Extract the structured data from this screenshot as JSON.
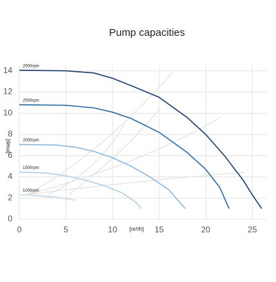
{
  "chart_data": {
    "type": "line",
    "title": "Pump capacities",
    "x_label": "[m³/h]",
    "y_label": "[mwp]",
    "xlim": [
      0,
      26.5
    ],
    "ylim": [
      0,
      14.5
    ],
    "xticks": [
      0,
      5,
      10,
      15,
      20,
      25
    ],
    "yticks": [
      0,
      2,
      4,
      6,
      8,
      10,
      12,
      14
    ],
    "grid": true,
    "series": [
      {
        "name": "2900rpm",
        "color": "#1f3f6e",
        "x": [
          0,
          5,
          8,
          10,
          12,
          15,
          18,
          20,
          22,
          24,
          25,
          26
        ],
        "values": [
          14.05,
          14.0,
          13.8,
          13.3,
          12.6,
          11.5,
          9.6,
          8.0,
          6.0,
          3.7,
          2.3,
          1.0
        ]
      },
      {
        "name": "2500rpm",
        "color": "#2e6ea6",
        "x": [
          0,
          5,
          8,
          10,
          12,
          15,
          18,
          20,
          21.5,
          22.5
        ],
        "values": [
          10.8,
          10.75,
          10.5,
          10.1,
          9.5,
          8.2,
          6.3,
          4.7,
          3.0,
          1.0
        ]
      },
      {
        "name": "2000rpm",
        "color": "#8fb8dc",
        "x": [
          0,
          4,
          6,
          8,
          10,
          12,
          14,
          16,
          17.8
        ],
        "values": [
          7.05,
          7.0,
          6.8,
          6.4,
          5.8,
          5.0,
          4.0,
          2.8,
          1.0
        ]
      },
      {
        "name": "1500rpm",
        "color": "#b5cfe6",
        "x": [
          0,
          3,
          5,
          7,
          9,
          11,
          12.5,
          13.1
        ],
        "values": [
          4.45,
          4.35,
          4.1,
          3.7,
          3.2,
          2.5,
          1.6,
          1.0
        ]
      },
      {
        "name": "1000rpm",
        "color": "#cfdfee",
        "x": [
          0,
          2,
          4,
          6
        ],
        "values": [
          2.3,
          2.25,
          2.1,
          1.8
        ]
      }
    ]
  }
}
